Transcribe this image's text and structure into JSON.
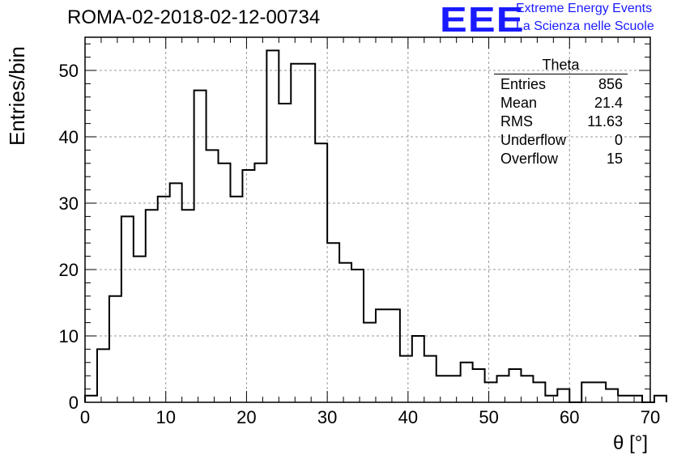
{
  "title": "ROMA-02-2018-02-12-00734",
  "logo": {
    "mark": "EEE",
    "line1": "Extreme Energy Events",
    "line2": "La Scienza nelle Scuole"
  },
  "stats": {
    "name": "Theta",
    "rows": [
      {
        "label": "Entries",
        "value": "856"
      },
      {
        "label": "Mean",
        "value": "21.4"
      },
      {
        "label": "RMS",
        "value": "11.63"
      },
      {
        "label": "Underflow",
        "value": "0"
      },
      {
        "label": "Overflow",
        "value": "15"
      }
    ]
  },
  "chart_data": {
    "type": "bar",
    "histogram": true,
    "title": "ROMA-02-2018-02-12-00734",
    "xlabel": "θ [°]",
    "ylabel": "Entries/bin",
    "xlim": [
      0,
      70
    ],
    "ylim": [
      0,
      55
    ],
    "bin_width": 1.5,
    "bin_start": 0,
    "xticks": [
      0,
      10,
      20,
      30,
      40,
      50,
      60,
      70
    ],
    "yticks": [
      0,
      10,
      20,
      30,
      40,
      50
    ],
    "grid": true,
    "legend": "top-right",
    "values": [
      1,
      8,
      16,
      28,
      22,
      29,
      31,
      33,
      29,
      47,
      38,
      36,
      31,
      35,
      36,
      53,
      45,
      51,
      51,
      39,
      24,
      21,
      20,
      12,
      14,
      14,
      7,
      10,
      7,
      4,
      4,
      6,
      5,
      3,
      4,
      5,
      4,
      3,
      1,
      2,
      0,
      3,
      3,
      2,
      1,
      1,
      0,
      1
    ]
  }
}
